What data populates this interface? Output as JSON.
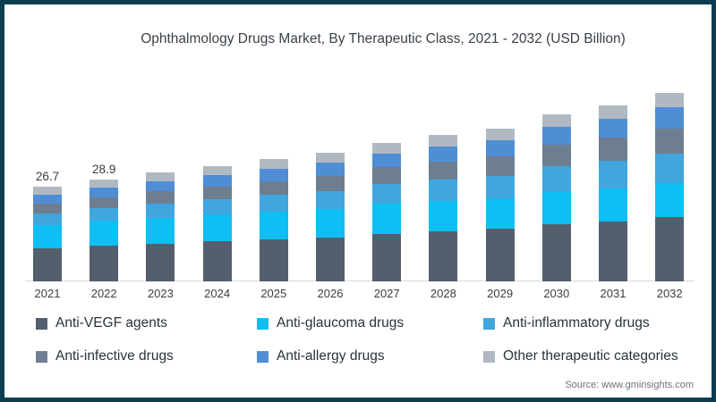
{
  "page": {
    "border_color": "#0d3d52",
    "background": "#ffffff"
  },
  "header": {
    "title": "Ophthalmology Drugs Market, By Therapeutic Class, 2021 - 2032 (USD Billion)"
  },
  "source": {
    "label": "Source: www.gminsights.com"
  },
  "chart_data": {
    "type": "bar",
    "subtype": "stacked",
    "title": "Ophthalmology Drugs Market, By Therapeutic Class, 2021 - 2032 (USD Billion)",
    "unit": "USD Billion",
    "xlabel": "",
    "ylabel": "",
    "ylim": [
      0,
      55
    ],
    "grid": false,
    "legend_position": "bottom",
    "categories": [
      "2021",
      "2022",
      "2023",
      "2024",
      "2025",
      "2026",
      "2027",
      "2028",
      "2029",
      "2030",
      "2031",
      "2032"
    ],
    "series": [
      {
        "name": "Anti-VEGF agents",
        "color": "#535f6d",
        "values": [
          9.3,
          10.0,
          10.6,
          11.3,
          11.9,
          12.5,
          13.5,
          14.1,
          14.8,
          16.1,
          17.0,
          18.1
        ]
      },
      {
        "name": "Anti-glaucoma drugs",
        "color": "#0fbef2",
        "values": [
          6.7,
          7.1,
          7.4,
          7.6,
          7.8,
          8.0,
          8.4,
          8.6,
          8.7,
          9.2,
          9.4,
          9.7
        ]
      },
      {
        "name": "Anti-inflammatory drugs",
        "color": "#41a6dd",
        "values": [
          3.3,
          3.6,
          4.0,
          4.3,
          4.7,
          5.1,
          5.6,
          6.0,
          6.4,
          7.2,
          7.7,
          8.4
        ]
      },
      {
        "name": "Anti-infective drugs",
        "color": "#6d7e91",
        "values": [
          2.8,
          3.1,
          3.4,
          3.7,
          4.0,
          4.3,
          4.7,
          5.1,
          5.5,
          6.1,
          6.6,
          7.1
        ]
      },
      {
        "name": "Anti-allergy drugs",
        "color": "#4f8ed4",
        "values": [
          2.5,
          2.8,
          3.0,
          3.2,
          3.5,
          3.7,
          4.0,
          4.3,
          4.6,
          5.1,
          5.4,
          5.9
        ]
      },
      {
        "name": "Other therapeutic categories",
        "color": "#b0b9c2",
        "values": [
          2.1,
          2.3,
          2.4,
          2.5,
          2.7,
          2.8,
          3.0,
          3.2,
          3.3,
          3.6,
          3.8,
          4.1
        ]
      }
    ],
    "value_labels": {
      "2021": "26.7",
      "2022": "28.9"
    }
  }
}
